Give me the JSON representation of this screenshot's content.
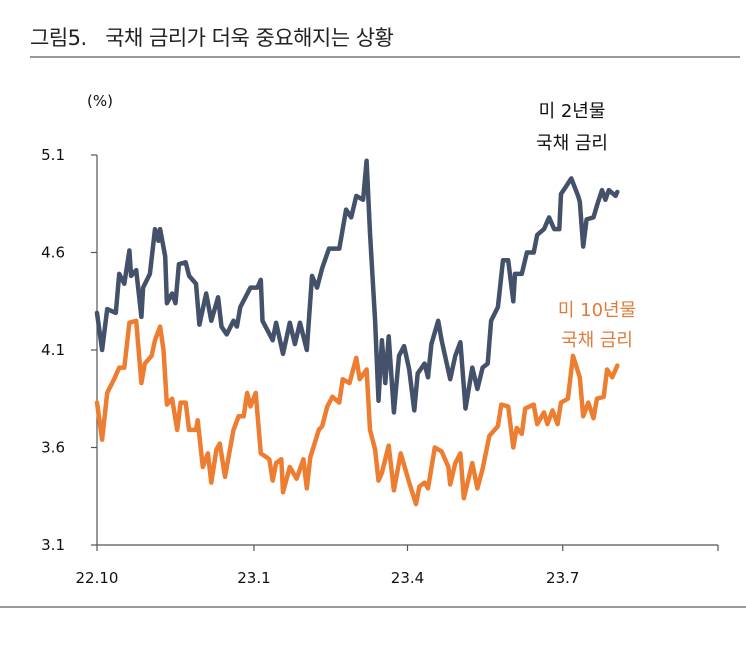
{
  "title": "그림5.   국채 금리가 더욱 중요해지는 상황",
  "chart_data": {
    "type": "line",
    "title": "",
    "unit_label": "(%)",
    "xlabel": "",
    "ylabel": "",
    "xlim": [
      "2022-10-01",
      "2023-09-30"
    ],
    "ylim": [
      3.1,
      5.1
    ],
    "yticks": [
      3.1,
      3.6,
      4.1,
      4.6,
      5.1
    ],
    "ytick_labels": [
      "3.1",
      "3.6",
      "4.1",
      "4.6",
      "5.1"
    ],
    "xticks": [
      {
        "date": "2022-10-01",
        "label": "22.10"
      },
      {
        "date": "2023-01-01",
        "label": "23.1"
      },
      {
        "date": "2023-04-01",
        "label": "23.4"
      },
      {
        "date": "2023-07-01",
        "label": "23.7"
      }
    ],
    "grid": false,
    "legend": "inline annotations",
    "series": [
      {
        "name_line1": "미 2년물",
        "name_line2": "국채 금리",
        "color": "#44516A",
        "points": [
          [
            "2022-10-01",
            4.29
          ],
          [
            "2022-10-04",
            4.1
          ],
          [
            "2022-10-07",
            4.31
          ],
          [
            "2022-10-12",
            4.29
          ],
          [
            "2022-10-14",
            4.49
          ],
          [
            "2022-10-17",
            4.44
          ],
          [
            "2022-10-20",
            4.61
          ],
          [
            "2022-10-21",
            4.48
          ],
          [
            "2022-10-24",
            4.51
          ],
          [
            "2022-10-27",
            4.27
          ],
          [
            "2022-10-28",
            4.42
          ],
          [
            "2022-11-01",
            4.49
          ],
          [
            "2022-11-04",
            4.72
          ],
          [
            "2022-11-06",
            4.66
          ],
          [
            "2022-11-07",
            4.72
          ],
          [
            "2022-11-10",
            4.58
          ],
          [
            "2022-11-11",
            4.34
          ],
          [
            "2022-11-14",
            4.39
          ],
          [
            "2022-11-16",
            4.34
          ],
          [
            "2022-11-18",
            4.54
          ],
          [
            "2022-11-22",
            4.55
          ],
          [
            "2022-11-24",
            4.48
          ],
          [
            "2022-11-28",
            4.44
          ],
          [
            "2022-11-30",
            4.23
          ],
          [
            "2022-12-04",
            4.39
          ],
          [
            "2022-12-07",
            4.25
          ],
          [
            "2022-12-11",
            4.37
          ],
          [
            "2022-12-13",
            4.22
          ],
          [
            "2022-12-16",
            4.18
          ],
          [
            "2022-12-20",
            4.25
          ],
          [
            "2022-12-22",
            4.22
          ],
          [
            "2022-12-24",
            4.32
          ],
          [
            "2022-12-27",
            4.37
          ],
          [
            "2022-12-30",
            4.42
          ],
          [
            "2023-01-03",
            4.42
          ],
          [
            "2023-01-05",
            4.46
          ],
          [
            "2023-01-06",
            4.25
          ],
          [
            "2023-01-12",
            4.15
          ],
          [
            "2023-01-14",
            4.24
          ],
          [
            "2023-01-18",
            4.08
          ],
          [
            "2023-01-22",
            4.24
          ],
          [
            "2023-01-25",
            4.13
          ],
          [
            "2023-01-28",
            4.24
          ],
          [
            "2023-02-01",
            4.1
          ],
          [
            "2023-02-04",
            4.48
          ],
          [
            "2023-02-07",
            4.42
          ],
          [
            "2023-02-10",
            4.52
          ],
          [
            "2023-02-14",
            4.62
          ],
          [
            "2023-02-20",
            4.62
          ],
          [
            "2023-02-22",
            4.72
          ],
          [
            "2023-02-24",
            4.82
          ],
          [
            "2023-02-27",
            4.78
          ],
          [
            "2023-03-02",
            4.89
          ],
          [
            "2023-03-06",
            4.87
          ],
          [
            "2023-03-08",
            5.07
          ],
          [
            "2023-03-10",
            4.7
          ],
          [
            "2023-03-13",
            4.25
          ],
          [
            "2023-03-15",
            3.84
          ],
          [
            "2023-03-17",
            4.15
          ],
          [
            "2023-03-19",
            3.93
          ],
          [
            "2023-03-21",
            4.17
          ],
          [
            "2023-03-24",
            3.78
          ],
          [
            "2023-03-27",
            4.07
          ],
          [
            "2023-03-30",
            4.12
          ],
          [
            "2023-04-02",
            4.0
          ],
          [
            "2023-04-05",
            3.79
          ],
          [
            "2023-04-07",
            3.98
          ],
          [
            "2023-04-11",
            4.03
          ],
          [
            "2023-04-13",
            3.96
          ],
          [
            "2023-04-15",
            4.13
          ],
          [
            "2023-04-19",
            4.25
          ],
          [
            "2023-04-21",
            4.15
          ],
          [
            "2023-04-26",
            3.95
          ],
          [
            "2023-04-29",
            4.07
          ],
          [
            "2023-05-02",
            4.14
          ],
          [
            "2023-05-05",
            3.8
          ],
          [
            "2023-05-09",
            4.01
          ],
          [
            "2023-05-12",
            3.9
          ],
          [
            "2023-05-15",
            4.01
          ],
          [
            "2023-05-18",
            4.03
          ],
          [
            "2023-05-20",
            4.25
          ],
          [
            "2023-05-24",
            4.32
          ],
          [
            "2023-05-27",
            4.56
          ],
          [
            "2023-05-30",
            4.56
          ],
          [
            "2023-06-02",
            4.35
          ],
          [
            "2023-06-03",
            4.49
          ],
          [
            "2023-06-07",
            4.49
          ],
          [
            "2023-06-10",
            4.6
          ],
          [
            "2023-06-14",
            4.6
          ],
          [
            "2023-06-16",
            4.69
          ],
          [
            "2023-06-20",
            4.72
          ],
          [
            "2023-06-23",
            4.78
          ],
          [
            "2023-06-26",
            4.72
          ],
          [
            "2023-06-29",
            4.72
          ],
          [
            "2023-06-30",
            4.9
          ],
          [
            "2023-07-03",
            4.94
          ],
          [
            "2023-07-06",
            4.98
          ],
          [
            "2023-07-10",
            4.89
          ],
          [
            "2023-07-11",
            4.86
          ],
          [
            "2023-07-13",
            4.63
          ],
          [
            "2023-07-15",
            4.77
          ],
          [
            "2023-07-19",
            4.78
          ],
          [
            "2023-07-21",
            4.84
          ],
          [
            "2023-07-24",
            4.92
          ],
          [
            "2023-07-26",
            4.87
          ],
          [
            "2023-07-28",
            4.92
          ],
          [
            "2023-08-01",
            4.89
          ],
          [
            "2023-08-02",
            4.91
          ]
        ]
      },
      {
        "name_line1": "미 10년물",
        "name_line2": "국채 금리",
        "color": "#ED7D31",
        "points": [
          [
            "2022-10-01",
            3.83
          ],
          [
            "2022-10-04",
            3.64
          ],
          [
            "2022-10-07",
            3.88
          ],
          [
            "2022-10-11",
            3.95
          ],
          [
            "2022-10-14",
            4.01
          ],
          [
            "2022-10-17",
            4.01
          ],
          [
            "2022-10-20",
            4.24
          ],
          [
            "2022-10-24",
            4.25
          ],
          [
            "2022-10-27",
            3.93
          ],
          [
            "2022-10-29",
            4.03
          ],
          [
            "2022-11-02",
            4.07
          ],
          [
            "2022-11-04",
            4.15
          ],
          [
            "2022-11-07",
            4.22
          ],
          [
            "2022-11-09",
            4.1
          ],
          [
            "2022-11-11",
            3.82
          ],
          [
            "2022-11-14",
            3.85
          ],
          [
            "2022-11-17",
            3.69
          ],
          [
            "2022-11-19",
            3.83
          ],
          [
            "2022-11-22",
            3.83
          ],
          [
            "2022-11-24",
            3.69
          ],
          [
            "2022-11-28",
            3.69
          ],
          [
            "2022-11-29",
            3.74
          ],
          [
            "2022-12-02",
            3.5
          ],
          [
            "2022-12-05",
            3.57
          ],
          [
            "2022-12-07",
            3.42
          ],
          [
            "2022-12-10",
            3.59
          ],
          [
            "2022-12-12",
            3.62
          ],
          [
            "2022-12-15",
            3.45
          ],
          [
            "2022-12-20",
            3.69
          ],
          [
            "2022-12-23",
            3.76
          ],
          [
            "2022-12-26",
            3.76
          ],
          [
            "2022-12-28",
            3.88
          ],
          [
            "2022-12-30",
            3.81
          ],
          [
            "2023-01-02",
            3.88
          ],
          [
            "2023-01-05",
            3.57
          ],
          [
            "2023-01-10",
            3.54
          ],
          [
            "2023-01-12",
            3.43
          ],
          [
            "2023-01-14",
            3.52
          ],
          [
            "2023-01-17",
            3.54
          ],
          [
            "2023-01-18",
            3.37
          ],
          [
            "2023-01-22",
            3.5
          ],
          [
            "2023-01-26",
            3.44
          ],
          [
            "2023-01-30",
            3.54
          ],
          [
            "2023-02-01",
            3.39
          ],
          [
            "2023-02-03",
            3.55
          ],
          [
            "2023-02-08",
            3.69
          ],
          [
            "2023-02-10",
            3.71
          ],
          [
            "2023-02-13",
            3.81
          ],
          [
            "2023-02-16",
            3.86
          ],
          [
            "2023-02-20",
            3.83
          ],
          [
            "2023-02-22",
            3.95
          ],
          [
            "2023-02-26",
            3.93
          ],
          [
            "2023-03-02",
            4.06
          ],
          [
            "2023-03-04",
            3.95
          ],
          [
            "2023-03-08",
            4.0
          ],
          [
            "2023-03-10",
            3.69
          ],
          [
            "2023-03-13",
            3.59
          ],
          [
            "2023-03-15",
            3.43
          ],
          [
            "2023-03-17",
            3.47
          ],
          [
            "2023-03-21",
            3.61
          ],
          [
            "2023-03-24",
            3.38
          ],
          [
            "2023-03-28",
            3.57
          ],
          [
            "2023-04-02",
            3.42
          ],
          [
            "2023-04-06",
            3.31
          ],
          [
            "2023-04-08",
            3.4
          ],
          [
            "2023-04-11",
            3.42
          ],
          [
            "2023-04-13",
            3.39
          ],
          [
            "2023-04-17",
            3.6
          ],
          [
            "2023-04-21",
            3.58
          ],
          [
            "2023-04-25",
            3.5
          ],
          [
            "2023-04-26",
            3.41
          ],
          [
            "2023-04-29",
            3.52
          ],
          [
            "2023-05-02",
            3.57
          ],
          [
            "2023-05-04",
            3.34
          ],
          [
            "2023-05-09",
            3.52
          ],
          [
            "2023-05-12",
            3.39
          ],
          [
            "2023-05-15",
            3.49
          ],
          [
            "2023-05-19",
            3.66
          ],
          [
            "2023-05-24",
            3.71
          ],
          [
            "2023-05-26",
            3.82
          ],
          [
            "2023-05-30",
            3.81
          ],
          [
            "2023-06-02",
            3.6
          ],
          [
            "2023-06-04",
            3.7
          ],
          [
            "2023-06-07",
            3.67
          ],
          [
            "2023-06-09",
            3.8
          ],
          [
            "2023-06-14",
            3.82
          ],
          [
            "2023-06-16",
            3.72
          ],
          [
            "2023-06-20",
            3.78
          ],
          [
            "2023-06-22",
            3.72
          ],
          [
            "2023-06-25",
            3.79
          ],
          [
            "2023-06-28",
            3.72
          ],
          [
            "2023-06-30",
            3.83
          ],
          [
            "2023-07-04",
            3.85
          ],
          [
            "2023-07-07",
            4.07
          ],
          [
            "2023-07-11",
            3.96
          ],
          [
            "2023-07-13",
            3.76
          ],
          [
            "2023-07-16",
            3.83
          ],
          [
            "2023-07-19",
            3.75
          ],
          [
            "2023-07-21",
            3.85
          ],
          [
            "2023-07-25",
            3.86
          ],
          [
            "2023-07-27",
            4.0
          ],
          [
            "2023-07-30",
            3.96
          ],
          [
            "2023-08-02",
            4.02
          ]
        ]
      }
    ]
  }
}
